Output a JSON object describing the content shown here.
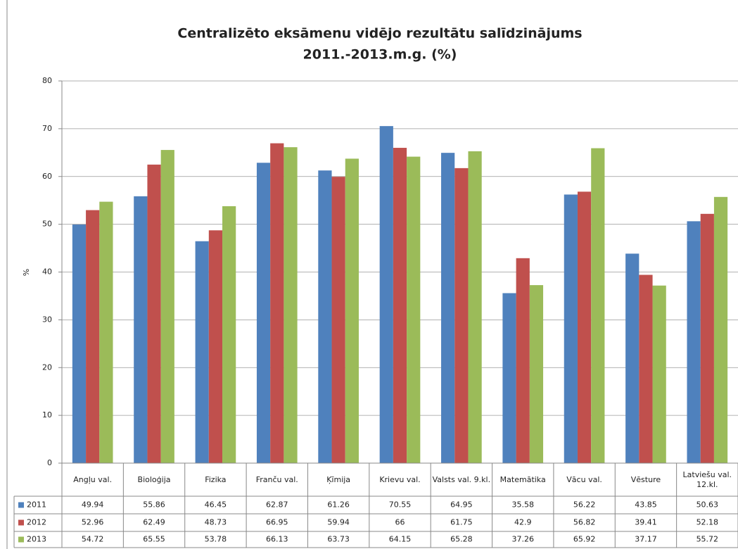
{
  "chart_data": {
    "type": "bar",
    "title": [
      "Centralizēto eksāmenu vidējo rezultātu salīdzinājums",
      "2011.-2013.m.g. (%)"
    ],
    "ylabel": "%",
    "categories": [
      "Angļu val.",
      "Bioloģija",
      "Fizika",
      "Franču val.",
      "Ķīmija",
      "Krievu val.",
      "Valsts val. 9.kl.",
      "Matemātika",
      "Vācu val.",
      "Vēsture",
      "Latviešu val. 12.kl."
    ],
    "series": [
      {
        "name": "2011",
        "color": "#4f81bd",
        "values": [
          49.94,
          55.86,
          46.45,
          62.87,
          61.26,
          70.55,
          64.95,
          35.58,
          56.22,
          43.85,
          50.63
        ]
      },
      {
        "name": "2012",
        "color": "#c0504d",
        "values": [
          52.96,
          62.49,
          48.73,
          66.95,
          59.94,
          66,
          61.75,
          42.9,
          56.82,
          39.41,
          52.18
        ]
      },
      {
        "name": "2013",
        "color": "#9bbb59",
        "values": [
          54.72,
          65.55,
          53.78,
          66.13,
          63.73,
          64.15,
          65.28,
          37.26,
          65.92,
          37.17,
          55.72
        ]
      }
    ],
    "ylim": [
      0,
      80
    ],
    "yticks": [
      0,
      10,
      20,
      30,
      40,
      50,
      60,
      70,
      80
    ],
    "grid": true
  }
}
